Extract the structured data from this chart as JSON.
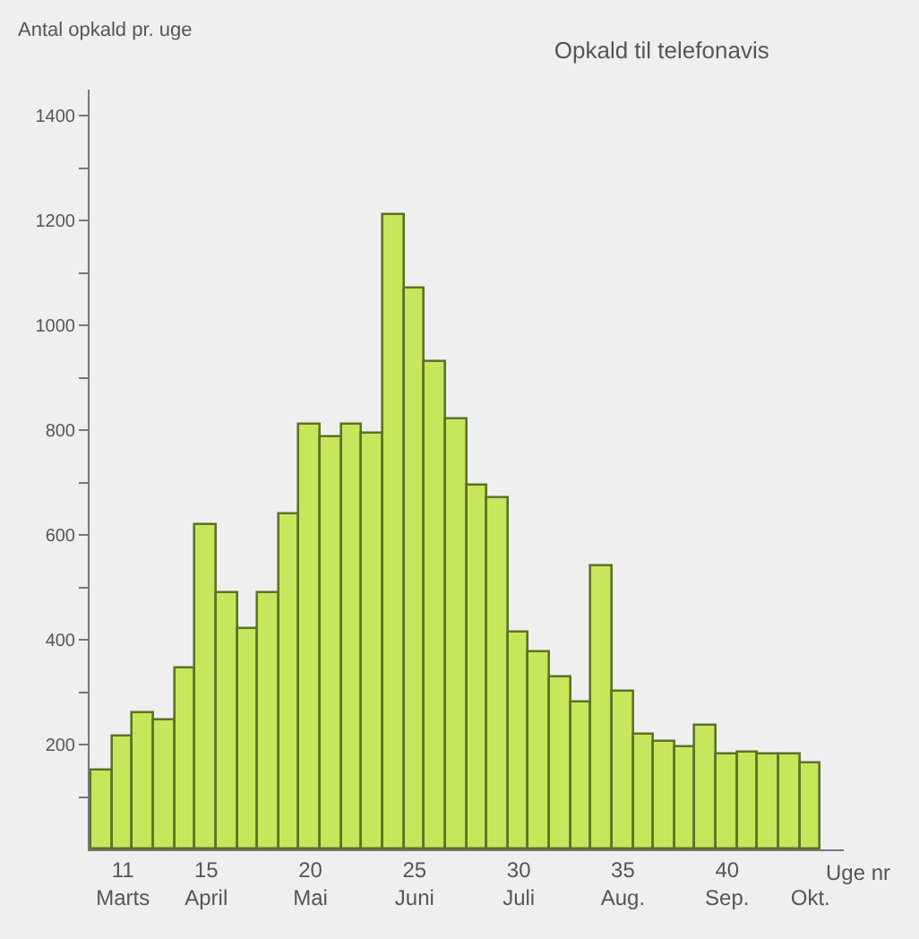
{
  "chart_data": {
    "type": "bar",
    "title": "Opkald til telefonavis",
    "ylabel": "Antal opkald pr. uge",
    "xlabel": "Uge nr",
    "categories": [
      null,
      "11\nMarts",
      null,
      null,
      null,
      "15\nApril",
      null,
      null,
      null,
      null,
      "20\nMai",
      null,
      null,
      null,
      null,
      "25\nJuni",
      null,
      null,
      null,
      null,
      "30\nJuli",
      null,
      null,
      null,
      null,
      "35\nAug.",
      null,
      null,
      null,
      null,
      "40\nSep.",
      null,
      null,
      null,
      "Okt."
    ],
    "values": [
      150,
      215,
      260,
      245,
      345,
      620,
      490,
      420,
      490,
      640,
      810,
      785,
      810,
      795,
      1210,
      1070,
      930,
      820,
      695,
      670,
      415,
      375,
      330,
      280,
      540,
      300,
      220,
      205,
      195,
      235,
      180,
      185,
      180,
      180,
      165
    ],
    "color": "#c8e65c",
    "ylim": [
      0,
      1450
    ],
    "yticks": [
      {
        "value": 100,
        "label": null
      },
      200,
      {
        "value": 300,
        "label": null
      },
      400,
      {
        "value": 500,
        "label": null
      },
      600,
      {
        "value": 700,
        "label": null
      },
      800,
      {
        "value": 900,
        "label": null
      },
      1000,
      {
        "value": 1100,
        "label": null
      },
      1200,
      {
        "value": 1300,
        "label": null
      },
      1400
    ],
    "grid": false,
    "legend": false
  }
}
